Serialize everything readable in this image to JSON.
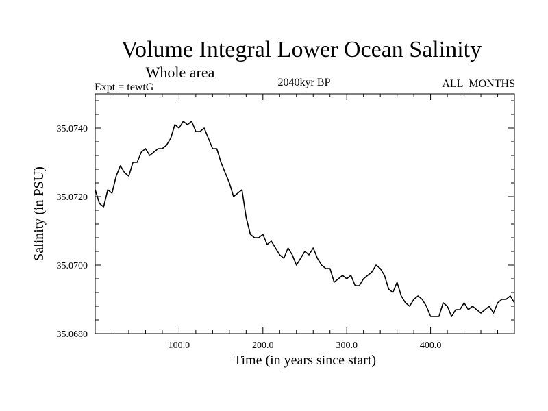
{
  "chart_data": {
    "type": "line",
    "title": "Volume Integral Lower Ocean Salinity",
    "subtitle": "Whole area",
    "experiment_label": "Expt = tewtG",
    "period_label": "2040kyr BP",
    "months_label": "ALL_MONTHS",
    "xlabel": "Time (in years since start)",
    "ylabel": "Salinity (in PSU)",
    "xlim": [
      0,
      500
    ],
    "ylim": [
      35.068,
      35.075
    ],
    "x_ticks": [
      100,
      200,
      300,
      400
    ],
    "x_tick_labels": [
      "100.0",
      "200.0",
      "300.0",
      "400.0"
    ],
    "y_ticks": [
      35.068,
      35.07,
      35.072,
      35.074
    ],
    "y_tick_labels": [
      "35.0680",
      "35.0700",
      "35.0720",
      "35.0740"
    ],
    "grid": false,
    "series": [
      {
        "name": "Salinity",
        "color": "#000000",
        "x": [
          0,
          5,
          10,
          15,
          20,
          25,
          30,
          35,
          40,
          45,
          50,
          55,
          60,
          65,
          70,
          75,
          80,
          85,
          90,
          95,
          100,
          105,
          110,
          115,
          120,
          125,
          130,
          135,
          140,
          145,
          150,
          155,
          160,
          165,
          170,
          175,
          180,
          185,
          190,
          195,
          200,
          205,
          210,
          215,
          220,
          225,
          230,
          235,
          240,
          245,
          250,
          255,
          260,
          265,
          270,
          275,
          280,
          285,
          290,
          295,
          300,
          305,
          310,
          315,
          320,
          325,
          330,
          335,
          340,
          345,
          350,
          355,
          360,
          365,
          370,
          375,
          380,
          385,
          390,
          395,
          400,
          405,
          410,
          415,
          420,
          425,
          430,
          435,
          440,
          445,
          450,
          455,
          460,
          465,
          470,
          475,
          480,
          485,
          490,
          495,
          500
        ],
        "values": [
          35.0722,
          35.0718,
          35.0717,
          35.0722,
          35.0721,
          35.0726,
          35.0729,
          35.0727,
          35.0726,
          35.073,
          35.073,
          35.0733,
          35.0734,
          35.0732,
          35.0733,
          35.0734,
          35.0734,
          35.0735,
          35.0737,
          35.0741,
          35.074,
          35.0742,
          35.0741,
          35.0742,
          35.0739,
          35.0739,
          35.074,
          35.0737,
          35.0734,
          35.0734,
          35.073,
          35.0727,
          35.0724,
          35.072,
          35.0721,
          35.0722,
          35.0714,
          35.0709,
          35.0708,
          35.0708,
          35.0709,
          35.0706,
          35.0707,
          35.0705,
          35.0703,
          35.0702,
          35.0705,
          35.0703,
          35.07,
          35.0702,
          35.0704,
          35.0703,
          35.0705,
          35.0702,
          35.07,
          35.0699,
          35.0699,
          35.0695,
          35.0696,
          35.0697,
          35.0696,
          35.0697,
          35.0694,
          35.0694,
          35.0696,
          35.0697,
          35.0698,
          35.07,
          35.0699,
          35.0697,
          35.0693,
          35.0692,
          35.0695,
          35.0691,
          35.0689,
          35.0688,
          35.069,
          35.0691,
          35.069,
          35.0688,
          35.0685,
          35.0685,
          35.0685,
          35.0689,
          35.0688,
          35.0685,
          35.0687,
          35.0687,
          35.0689,
          35.0687,
          35.0688,
          35.0687,
          35.0686,
          35.0687,
          35.0688,
          35.0686,
          35.0689,
          35.069,
          35.069,
          35.0691,
          35.0689
        ]
      }
    ]
  }
}
